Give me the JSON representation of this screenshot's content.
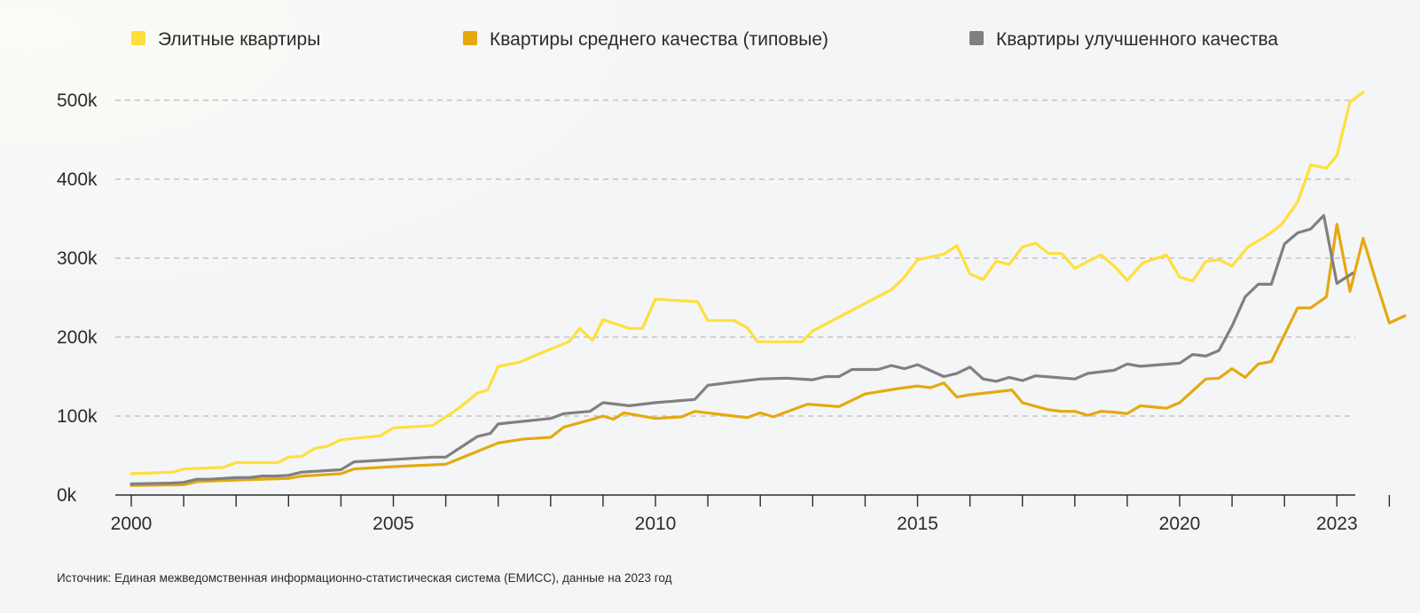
{
  "colors": {
    "elite": "#ffdf3c",
    "standard": "#e5a90f",
    "improved": "#808080",
    "grid": "#b9bcc0",
    "axis": "#2b2b2b"
  },
  "source_text": "Источник: Единая межведомственная информационно-статистическая система (ЕМИСС), данные на 2023 год",
  "chart_data": {
    "type": "line",
    "title": "",
    "xlabel": "",
    "ylabel": "",
    "xlim": [
      2000.0,
      2024.6
    ],
    "ylim": [
      0,
      500000
    ],
    "grid": true,
    "legend_position": "top",
    "x_tick_labels": [
      {
        "x": 2000,
        "label": "2000"
      },
      {
        "x": 2005,
        "label": "2005"
      },
      {
        "x": 2010,
        "label": "2010"
      },
      {
        "x": 2015,
        "label": "2015"
      },
      {
        "x": 2020,
        "label": "2020"
      },
      {
        "x": 2023,
        "label": "2023"
      }
    ],
    "y_ticks": [
      {
        "y": 0,
        "label": "0k"
      },
      {
        "y": 100000,
        "label": "100k"
      },
      {
        "y": 200000,
        "label": "200k"
      },
      {
        "y": 300000,
        "label": "300k"
      },
      {
        "y": 400000,
        "label": "400k"
      },
      {
        "y": 500000,
        "label": "500k"
      }
    ],
    "series": [
      {
        "name": "Элитные квартиры",
        "color_key": "elite",
        "points": [
          [
            2000.0,
            27000
          ],
          [
            2000.8,
            29000
          ],
          [
            2001.0,
            33000
          ],
          [
            2001.75,
            35000
          ],
          [
            2002.0,
            41000
          ],
          [
            2002.8,
            41000
          ],
          [
            2003.0,
            48000
          ],
          [
            2003.25,
            49000
          ],
          [
            2003.5,
            59000
          ],
          [
            2003.75,
            62000
          ],
          [
            2004.0,
            70000
          ],
          [
            2004.75,
            75000
          ],
          [
            2005.0,
            85000
          ],
          [
            2005.75,
            88000
          ],
          [
            2006.25,
            110000
          ],
          [
            2006.6,
            129000
          ],
          [
            2006.8,
            133000
          ],
          [
            2007.0,
            163000
          ],
          [
            2007.4,
            168000
          ],
          [
            2008.0,
            185000
          ],
          [
            2008.35,
            194000
          ],
          [
            2008.55,
            211000
          ],
          [
            2008.8,
            196000
          ],
          [
            2009.0,
            222000
          ],
          [
            2009.5,
            211000
          ],
          [
            2009.75,
            211000
          ],
          [
            2010.0,
            248000
          ],
          [
            2010.8,
            245000
          ],
          [
            2011.0,
            221000
          ],
          [
            2011.5,
            221000
          ],
          [
            2011.75,
            212000
          ],
          [
            2011.95,
            194000
          ],
          [
            2012.8,
            194000
          ],
          [
            2013.0,
            208000
          ],
          [
            2014.5,
            260000
          ],
          [
            2014.75,
            276000
          ],
          [
            2015.0,
            298000
          ],
          [
            2015.5,
            305000
          ],
          [
            2015.75,
            316000
          ],
          [
            2016.0,
            280000
          ],
          [
            2016.25,
            273000
          ],
          [
            2016.5,
            296000
          ],
          [
            2016.75,
            292000
          ],
          [
            2017.0,
            314000
          ],
          [
            2017.25,
            319000
          ],
          [
            2017.5,
            306000
          ],
          [
            2017.75,
            306000
          ],
          [
            2018.0,
            287000
          ],
          [
            2018.25,
            296000
          ],
          [
            2018.5,
            304000
          ],
          [
            2018.75,
            290000
          ],
          [
            2019.0,
            272000
          ],
          [
            2019.3,
            294000
          ],
          [
            2019.75,
            304000
          ],
          [
            2020.0,
            276000
          ],
          [
            2020.25,
            271000
          ],
          [
            2020.5,
            296000
          ],
          [
            2020.75,
            298000
          ],
          [
            2021.0,
            290000
          ],
          [
            2021.3,
            314000
          ],
          [
            2021.7,
            330000
          ],
          [
            2021.95,
            343000
          ],
          [
            2022.25,
            371000
          ],
          [
            2022.5,
            418000
          ],
          [
            2022.8,
            414000
          ],
          [
            2023.0,
            430000
          ],
          [
            2023.25,
            498000
          ],
          [
            2023.5,
            510000
          ]
        ]
      },
      {
        "name": "Квартиры среднего качества (типовые)",
        "color_key": "standard",
        "points": [
          [
            2000.0,
            12000
          ],
          [
            2001.0,
            13000
          ],
          [
            2001.25,
            17000
          ],
          [
            2002.0,
            19000
          ],
          [
            2003.0,
            21000
          ],
          [
            2003.25,
            24000
          ],
          [
            2004.0,
            27000
          ],
          [
            2004.25,
            33000
          ],
          [
            2005.0,
            36000
          ],
          [
            2006.0,
            39000
          ],
          [
            2007.0,
            66000
          ],
          [
            2007.5,
            71000
          ],
          [
            2008.0,
            73000
          ],
          [
            2008.25,
            86000
          ],
          [
            2008.8,
            96000
          ],
          [
            2009.0,
            100000
          ],
          [
            2009.2,
            96000
          ],
          [
            2009.4,
            104000
          ],
          [
            2010.0,
            97000
          ],
          [
            2010.5,
            99000
          ],
          [
            2010.75,
            106000
          ],
          [
            2011.5,
            100000
          ],
          [
            2011.75,
            98000
          ],
          [
            2012.0,
            104000
          ],
          [
            2012.25,
            99000
          ],
          [
            2012.9,
            115000
          ],
          [
            2013.5,
            112000
          ],
          [
            2014.0,
            128000
          ],
          [
            2014.75,
            136000
          ],
          [
            2015.0,
            138000
          ],
          [
            2015.25,
            136000
          ],
          [
            2015.5,
            142000
          ],
          [
            2015.75,
            124000
          ],
          [
            2016.0,
            127000
          ],
          [
            2016.8,
            133000
          ],
          [
            2017.0,
            117000
          ],
          [
            2017.5,
            108000
          ],
          [
            2017.75,
            106000
          ],
          [
            2018.0,
            106000
          ],
          [
            2018.25,
            101000
          ],
          [
            2018.5,
            106000
          ],
          [
            2018.75,
            105000
          ],
          [
            2019.0,
            103000
          ],
          [
            2019.25,
            113000
          ],
          [
            2019.75,
            110000
          ],
          [
            2020.0,
            117000
          ],
          [
            2020.5,
            147000
          ],
          [
            2020.75,
            148000
          ],
          [
            2021.0,
            160000
          ],
          [
            2021.25,
            149000
          ],
          [
            2021.5,
            166000
          ],
          [
            2021.75,
            169000
          ],
          [
            2022.25,
            237000
          ],
          [
            2022.5,
            237000
          ],
          [
            2022.8,
            251000
          ],
          [
            2023.0,
            343000
          ],
          [
            2023.25,
            258000
          ],
          [
            2023.5,
            325000
          ],
          [
            2023.75,
            270000
          ],
          [
            2024.0,
            218000
          ],
          [
            2024.3,
            227000
          ]
        ]
      },
      {
        "name": "Квартиры улучшенного качества",
        "color_key": "improved",
        "points": [
          [
            2000.0,
            14000
          ],
          [
            2000.75,
            15000
          ],
          [
            2001.0,
            16000
          ],
          [
            2001.25,
            20000
          ],
          [
            2001.5,
            20000
          ],
          [
            2002.0,
            22000
          ],
          [
            2002.25,
            22000
          ],
          [
            2002.5,
            24000
          ],
          [
            2002.75,
            24000
          ],
          [
            2003.0,
            25000
          ],
          [
            2003.25,
            29000
          ],
          [
            2004.0,
            32000
          ],
          [
            2004.25,
            42000
          ],
          [
            2005.75,
            48000
          ],
          [
            2006.0,
            48000
          ],
          [
            2006.6,
            74000
          ],
          [
            2006.85,
            78000
          ],
          [
            2007.0,
            90000
          ],
          [
            2008.0,
            97000
          ],
          [
            2008.25,
            103000
          ],
          [
            2008.75,
            106000
          ],
          [
            2009.0,
            117000
          ],
          [
            2009.5,
            113000
          ],
          [
            2010.0,
            117000
          ],
          [
            2010.75,
            121000
          ],
          [
            2011.0,
            139000
          ],
          [
            2011.5,
            143000
          ],
          [
            2012.0,
            147000
          ],
          [
            2012.5,
            148000
          ],
          [
            2013.0,
            146000
          ],
          [
            2013.25,
            150000
          ],
          [
            2013.5,
            150000
          ],
          [
            2013.75,
            159000
          ],
          [
            2014.25,
            159000
          ],
          [
            2014.5,
            164000
          ],
          [
            2014.75,
            160000
          ],
          [
            2015.0,
            165000
          ],
          [
            2015.5,
            150000
          ],
          [
            2015.75,
            154000
          ],
          [
            2016.0,
            162000
          ],
          [
            2016.25,
            147000
          ],
          [
            2016.5,
            144000
          ],
          [
            2016.75,
            149000
          ],
          [
            2017.0,
            145000
          ],
          [
            2017.25,
            151000
          ],
          [
            2018.0,
            147000
          ],
          [
            2018.25,
            154000
          ],
          [
            2018.75,
            158000
          ],
          [
            2019.0,
            166000
          ],
          [
            2019.25,
            163000
          ],
          [
            2020.0,
            167000
          ],
          [
            2020.25,
            178000
          ],
          [
            2020.5,
            176000
          ],
          [
            2020.75,
            183000
          ],
          [
            2021.0,
            214000
          ],
          [
            2021.25,
            251000
          ],
          [
            2021.5,
            267000
          ],
          [
            2021.75,
            267000
          ],
          [
            2022.0,
            318000
          ],
          [
            2022.25,
            332000
          ],
          [
            2022.5,
            337000
          ],
          [
            2022.75,
            354000
          ],
          [
            2023.0,
            268000
          ],
          [
            2023.3,
            281000
          ]
        ]
      }
    ]
  }
}
